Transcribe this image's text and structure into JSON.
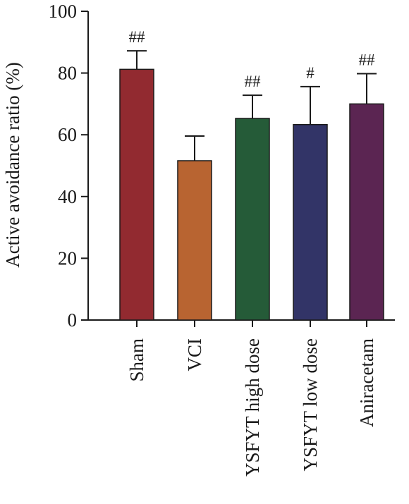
{
  "chart_data": {
    "type": "bar",
    "title": "",
    "xlabel": "",
    "ylabel": "Active avoidance ratio (%)",
    "ylim": [
      0,
      100
    ],
    "yticks": [
      0,
      20,
      40,
      60,
      80,
      100
    ],
    "ytick_labels": [
      "0",
      "20",
      "40",
      "60",
      "80",
      "100"
    ],
    "categories": [
      "Sham",
      "VCI",
      "YSFYT high dose",
      "YSFYT low dose",
      "Aniracetam"
    ],
    "values": [
      81.2,
      51.6,
      65.3,
      63.3,
      70.0
    ],
    "errors": [
      6.0,
      8.0,
      7.5,
      12.3,
      9.8
    ],
    "annotations": [
      "##",
      "",
      "##",
      "#",
      "##"
    ],
    "colors": [
      "#922a30",
      "#b86431",
      "#255b38",
      "#323467",
      "#5b2552"
    ],
    "grid": false,
    "legend": "none"
  }
}
